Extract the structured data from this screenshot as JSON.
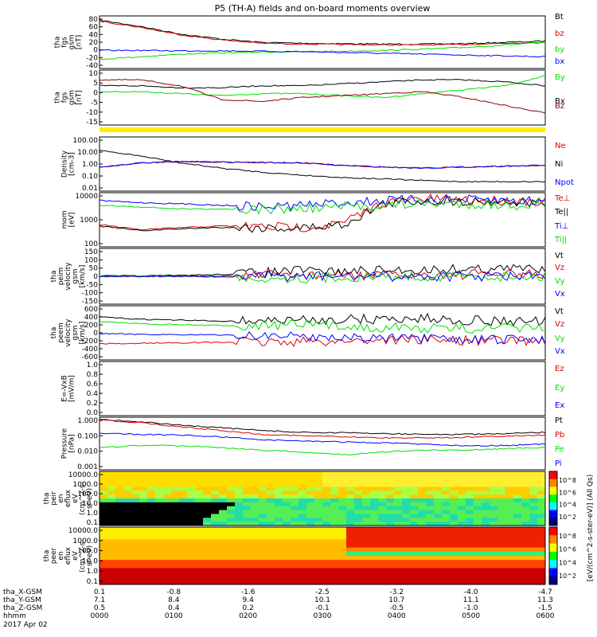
{
  "title": "P5 (TH-A) fields and on-board moments overview",
  "date_label": "2017 Apr 02",
  "colors": {
    "black": "#000000",
    "red": "#e00000",
    "green": "#00e000",
    "blue": "#0000ff",
    "darkred": "#8b0000",
    "yellow": "#ffee00"
  },
  "colorbar": {
    "label": "[eV/(cm^2-s-ster-eV)] (All Qs)",
    "ticks": [
      "10^8",
      "10^6",
      "10^4",
      "10^2"
    ],
    "ticks_lower": [
      "10^8",
      "10^6",
      "10^4",
      "10^2"
    ]
  },
  "chart_data": [
    {
      "type": "line",
      "ylabel": [
        "tha",
        "fgs",
        "gsm",
        "[nT]"
      ],
      "yticks": [
        "80",
        "60",
        "40",
        "20",
        "0",
        "-20",
        "-40"
      ],
      "ylim": [
        -40,
        85
      ],
      "series": [
        {
          "name": "Bt",
          "color": "black",
          "values": [
            75,
            60,
            42,
            30,
            22,
            20,
            19,
            18,
            18,
            19,
            22,
            25
          ]
        },
        {
          "name": "bz",
          "color": "red",
          "values": [
            73,
            58,
            40,
            28,
            20,
            18,
            17,
            16,
            16,
            17,
            20,
            22
          ]
        },
        {
          "name": "by",
          "color": "green",
          "values": [
            -18,
            -12,
            -6,
            -3,
            -1,
            0,
            1,
            3,
            6,
            10,
            16,
            22
          ]
        },
        {
          "name": "bx",
          "color": "blue",
          "values": [
            3,
            3,
            2,
            2,
            1,
            0,
            -2,
            -4,
            -6,
            -8,
            -10,
            -12
          ]
        }
      ]
    },
    {
      "type": "line",
      "ylabel": [
        "tha",
        "fgs",
        "gsm",
        "[nT]"
      ],
      "yticks": [
        "10",
        "5",
        "0",
        "-5",
        "-10",
        "-15"
      ],
      "ylim": [
        -18,
        10
      ],
      "series": [
        {
          "name": "By",
          "color": "green",
          "values": [
            -1,
            -1,
            -2,
            -3,
            -2,
            -2,
            -3,
            -4,
            -2,
            0,
            2,
            7
          ]
        },
        {
          "name": "Bx",
          "color": "black",
          "values": [
            2,
            2,
            1,
            1,
            2,
            2,
            3,
            4,
            5,
            5,
            4,
            2
          ]
        },
        {
          "name": "Bz",
          "color": "darkred",
          "values": [
            5,
            5,
            2,
            -5,
            -6,
            -4,
            -3,
            -2,
            -1,
            -4,
            -8,
            -12
          ]
        }
      ]
    },
    {
      "type": "line",
      "ylabel": [
        "Density",
        "[cm-3]"
      ],
      "yticks": [
        "100.00",
        "10.00",
        "1.00",
        "0.10",
        "0.01"
      ],
      "log": true,
      "ylim": [
        0.01,
        100
      ],
      "series": [
        {
          "name": "Ne",
          "color": "red",
          "values": [
            0.6,
            1.2,
            1.5,
            1.4,
            1.3,
            1.2,
            0.8,
            0.6,
            0.5,
            0.6,
            0.7,
            0.8
          ]
        },
        {
          "name": "Ni",
          "color": "black",
          "values": [
            10,
            4,
            1.2,
            0.5,
            0.25,
            0.15,
            0.1,
            0.08,
            0.06,
            0.05,
            0.05,
            0.05
          ]
        },
        {
          "name": "Npot",
          "color": "blue",
          "values": [
            0.6,
            1.2,
            1.5,
            1.4,
            1.3,
            1.2,
            0.8,
            0.6,
            0.5,
            0.6,
            0.7,
            0.8
          ]
        }
      ]
    },
    {
      "type": "line",
      "ylabel": [
        "mom",
        "[eV]"
      ],
      "yticks": [
        "10000",
        "1000",
        "100"
      ],
      "log": true,
      "ylim": [
        30,
        12000
      ],
      "series": [
        {
          "name": "Te⊥",
          "color": "red",
          "values": [
            350,
            200,
            250,
            300,
            280,
            260,
            400,
            4000,
            6000,
            5500,
            5000,
            4500
          ]
        },
        {
          "name": "Te||",
          "color": "black",
          "values": [
            300,
            180,
            220,
            260,
            250,
            240,
            350,
            3500,
            5000,
            4800,
            4500,
            4000
          ]
        },
        {
          "name": "Ti⊥",
          "color": "blue",
          "values": [
            5000,
            4000,
            3500,
            3000,
            2500,
            3000,
            4000,
            5000,
            5500,
            5500,
            5000,
            4500
          ]
        },
        {
          "name": "Ti||",
          "color": "green",
          "values": [
            3000,
            2500,
            2000,
            2000,
            1800,
            2000,
            2500,
            3000,
            3500,
            3500,
            3000,
            3000
          ]
        }
      ]
    },
    {
      "type": "line",
      "ylabel": [
        "tha",
        "peim",
        "velocity",
        "gsm",
        "[km/s]"
      ],
      "yticks": [
        "150",
        "100",
        "50",
        "0",
        "-50",
        "-100",
        "-150"
      ],
      "ylim": [
        -150,
        150
      ],
      "series": [
        {
          "name": "Vt",
          "color": "black",
          "values": [
            2,
            2,
            5,
            10,
            20,
            30,
            25,
            30,
            35,
            40,
            40,
            45
          ]
        },
        {
          "name": "Vz",
          "color": "red",
          "values": [
            0,
            0,
            0,
            0,
            5,
            5,
            5,
            5,
            5,
            10,
            10,
            10
          ]
        },
        {
          "name": "Vy",
          "color": "green",
          "values": [
            0,
            0,
            0,
            -5,
            -10,
            -10,
            -5,
            -5,
            0,
            0,
            0,
            0
          ]
        },
        {
          "name": "Vx",
          "color": "blue",
          "values": [
            0,
            0,
            0,
            0,
            0,
            0,
            0,
            0,
            0,
            0,
            0,
            0
          ]
        }
      ]
    },
    {
      "type": "line",
      "ylabel": [
        "tha",
        "peem",
        "velocity",
        "gsm",
        "[km/s]"
      ],
      "yticks": [
        "600",
        "400",
        "200",
        "0",
        "-200",
        "-400",
        "-600"
      ],
      "ylim": [
        -600,
        600
      ],
      "series": [
        {
          "name": "Vt",
          "color": "black",
          "values": [
            350,
            300,
            280,
            260,
            270,
            280,
            300,
            300,
            320,
            280,
            260,
            250
          ]
        },
        {
          "name": "Vz",
          "color": "red",
          "values": [
            -250,
            -230,
            -220,
            -210,
            -200,
            -200,
            -180,
            -150,
            -150,
            -170,
            -170,
            -170
          ]
        },
        {
          "name": "Vy",
          "color": "green",
          "values": [
            250,
            200,
            180,
            160,
            170,
            180,
            150,
            120,
            100,
            100,
            100,
            110
          ]
        },
        {
          "name": "Vx",
          "color": "blue",
          "values": [
            -20,
            -30,
            -40,
            -50,
            -60,
            -80,
            -100,
            -120,
            -140,
            -160,
            -150,
            -140
          ]
        }
      ]
    },
    {
      "type": "line",
      "ylabel": [
        "E=-VxB",
        "[mV/m]"
      ],
      "yticks": [
        "1.0",
        "0.8",
        "0.6",
        "0.4",
        "0.2",
        "0.0"
      ],
      "ylim": [
        0,
        1
      ],
      "series": [
        {
          "name": "Ez",
          "color": "red",
          "values": []
        },
        {
          "name": "Ey",
          "color": "green",
          "values": []
        },
        {
          "name": "Ex",
          "color": "blue",
          "values": []
        }
      ]
    },
    {
      "type": "line",
      "ylabel": [
        "Pressure",
        "[nPa]"
      ],
      "yticks": [
        "1.000",
        "0.100",
        "0.010",
        "0.001"
      ],
      "log": true,
      "ylim": [
        0.001,
        3
      ],
      "series": [
        {
          "name": "Pt",
          "color": "black",
          "values": [
            2.2,
            1.5,
            0.9,
            0.6,
            0.4,
            0.3,
            0.28,
            0.25,
            0.22,
            0.22,
            0.24,
            0.3
          ]
        },
        {
          "name": "Pb",
          "color": "red",
          "values": [
            2.0,
            1.3,
            0.7,
            0.4,
            0.22,
            0.18,
            0.15,
            0.13,
            0.13,
            0.14,
            0.17,
            0.2
          ]
        },
        {
          "name": "Pe",
          "color": "green",
          "values": [
            0.03,
            0.04,
            0.04,
            0.03,
            0.02,
            0.015,
            0.01,
            0.015,
            0.02,
            0.02,
            0.025,
            0.03
          ]
        },
        {
          "name": "Pi",
          "color": "blue",
          "values": [
            0.25,
            0.22,
            0.2,
            0.15,
            0.1,
            0.08,
            0.07,
            0.06,
            0.05,
            0.04,
            0.04,
            0.05
          ]
        }
      ]
    },
    {
      "type": "heatmap",
      "ylabel": [
        "tha",
        "peir",
        "en",
        "eflux",
        "eV",
        "(cm^2-s-",
        "sr-eV)"
      ],
      "yticks": [
        "10000.0",
        "1000.0",
        "100.0",
        "10.0",
        "1.0",
        "0.1"
      ]
    },
    {
      "type": "heatmap",
      "ylabel": [
        "tha",
        "peer",
        "en",
        "eflux",
        "eV",
        "(cm^2-s-",
        "sr-eV)"
      ],
      "yticks": [
        "10000.0",
        "1000.0",
        "100.0",
        "10.0",
        "1.0",
        "0.1"
      ]
    }
  ],
  "x_axis": {
    "rows": [
      {
        "label": "tha_X-GSM",
        "values": [
          "0.1",
          "-0.8",
          "-1.6",
          "-2.5",
          "-3.2",
          "-4.0",
          "-4.7"
        ]
      },
      {
        "label": "tha_Y-GSM",
        "values": [
          "7.1",
          "8.4",
          "9.4",
          "10.1",
          "10.7",
          "11.1",
          "11.3"
        ]
      },
      {
        "label": "tha_Z-GSM",
        "values": [
          "0.5",
          "0.4",
          "0.2",
          "-0.1",
          "-0.5",
          "-1.0",
          "-1.5"
        ]
      },
      {
        "label": "hhmm",
        "values": [
          "0000",
          "0100",
          "0200",
          "0300",
          "0400",
          "0500",
          "0600"
        ]
      }
    ]
  }
}
